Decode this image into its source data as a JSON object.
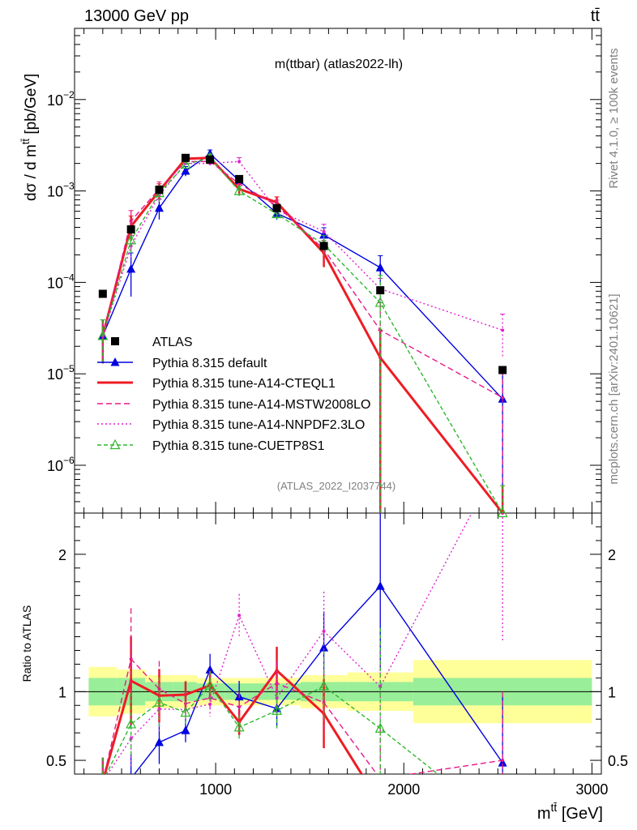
{
  "header": {
    "left": "13000 GeV pp",
    "right": "tt̄"
  },
  "chart_data": {
    "type": "line",
    "title": "m(ttbar) (atlas2022-lh)",
    "analysis_id": "(ATLAS_2022_I2037744)",
    "side_label_top": "Rivet 4.1.0, ≥ 100k events",
    "side_label_bottom": "mcplots.cern.ch [arXiv:2401.10621]",
    "ylabel": "dσ / d m^{tt̄} [pb/GeV]",
    "ylabel_text": "dσ / d m",
    "ylabel_sup": "tt̄",
    "ylabel_unit": " [pb/GeV]",
    "ratio_ylabel": "Ratio to ATLAS",
    "xlabel_text": "m",
    "xlabel_sup": "tt̄",
    "xlabel_unit": " [GeV]",
    "xlim": [
      250,
      3050
    ],
    "ylim_log": [
      3e-07,
      0.06
    ],
    "ratio_ylim": [
      0.4,
      2.3
    ],
    "x_ticks": [
      1000,
      2000,
      3000
    ],
    "x_tick_labels": [
      "1000",
      "2000",
      "3000"
    ],
    "y_major_exp": [
      -6,
      -5,
      -4,
      -3,
      -2
    ],
    "y_tick_labels": [
      "10",
      "10",
      "10",
      "10",
      "10"
    ],
    "y_tick_exps": [
      "−6",
      "−5",
      "−4",
      "−3",
      "−2"
    ],
    "ratio_ticks": [
      0.5,
      1,
      2
    ],
    "ratio_tick_labels": [
      "0.5",
      "1",
      "2"
    ],
    "bins": [
      [
        325,
        475
      ],
      [
        475,
        625
      ],
      [
        625,
        775
      ],
      [
        775,
        900
      ],
      [
        900,
        1050
      ],
      [
        1050,
        1200
      ],
      [
        1200,
        1450
      ],
      [
        1450,
        1700
      ],
      [
        1700,
        2050
      ],
      [
        2050,
        3000
      ]
    ],
    "x": [
      400,
      550,
      700,
      840,
      970,
      1125,
      1325,
      1575,
      1875,
      2525
    ],
    "band_stat": [
      0.1,
      0.1,
      0.07,
      0.07,
      0.06,
      0.06,
      0.06,
      0.07,
      0.07,
      0.1
    ],
    "band_tot": [
      0.18,
      0.16,
      0.12,
      0.12,
      0.1,
      0.1,
      0.1,
      0.12,
      0.14,
      0.23
    ],
    "series": [
      {
        "name": "ATLAS",
        "legend": "ATLAS",
        "color": "#000000",
        "dash": "",
        "marker": "square",
        "values": [
          7.5e-05,
          0.00038,
          0.00103,
          0.0023,
          0.0022,
          0.00135,
          0.00065,
          0.00025,
          8.2e-05,
          1.1e-05
        ]
      },
      {
        "name": "default",
        "legend": "Pythia 8.315 default",
        "color": "#0000e0",
        "dash": "",
        "marker": "triangle",
        "values": [
          2.6e-05,
          0.00014,
          0.00065,
          0.00165,
          0.00255,
          0.0013,
          0.00057,
          0.00033,
          0.000145,
          5.3e-06
        ],
        "err": [
          0.5,
          0.5,
          0.25,
          0.12,
          0.1,
          0.12,
          0.15,
          0.2,
          0.35,
          1.0
        ]
      },
      {
        "name": "A14-CTEQL1",
        "legend": "Pythia 8.315 tune-A14-CTEQL1",
        "color": "#ee1c24",
        "dash": "",
        "marker": "none",
        "width": 3,
        "values": [
          2.6e-05,
          0.00041,
          0.001,
          0.00225,
          0.0023,
          0.00105,
          0.00075,
          0.00021,
          1.5e-05,
          3e-07
        ],
        "err": [
          0.5,
          0.3,
          0.2,
          0.1,
          0.1,
          0.12,
          0.15,
          0.3,
          1.0,
          1.0
        ]
      },
      {
        "name": "A14-MSTW2008LO",
        "legend": "Pythia 8.315 tune-A14-MSTW2008LO",
        "color": "#e8198a",
        "dash": "7,4",
        "marker": "none",
        "values": [
          2.6e-05,
          0.00047,
          0.00105,
          0.0021,
          0.0021,
          0.0012,
          0.00069,
          0.00023,
          3e-05,
          5.5e-06
        ],
        "err": [
          0.5,
          0.3,
          0.2,
          0.1,
          0.1,
          0.12,
          0.15,
          0.25,
          1.0,
          1.0
        ]
      },
      {
        "name": "A14-NNPDF2.3LO",
        "legend": "Pythia 8.315 tune-A14-NNPDF2.3LO",
        "color": "#e020d0",
        "dash": "2,3",
        "marker": "none",
        "values": [
          2.6e-05,
          0.00025,
          0.0009,
          0.002,
          0.002,
          0.0021,
          0.00062,
          0.00036,
          8.5e-05,
          3e-05
        ],
        "err": [
          0.5,
          0.3,
          0.2,
          0.1,
          0.1,
          0.1,
          0.15,
          0.2,
          0.3,
          0.5
        ]
      },
      {
        "name": "CUETP8S1",
        "legend": "Pythia 8.315 tune-CUETP8S1",
        "color": "#2db82d",
        "dash": "5,3",
        "marker": "opentriangle",
        "values": [
          2.6e-05,
          0.00029,
          0.00095,
          0.00195,
          0.0023,
          0.001,
          0.00056,
          0.00026,
          6e-05,
          3e-07
        ],
        "err": [
          0.5,
          0.3,
          0.2,
          0.1,
          0.1,
          0.12,
          0.15,
          0.25,
          1.0,
          1.0
        ]
      }
    ]
  }
}
